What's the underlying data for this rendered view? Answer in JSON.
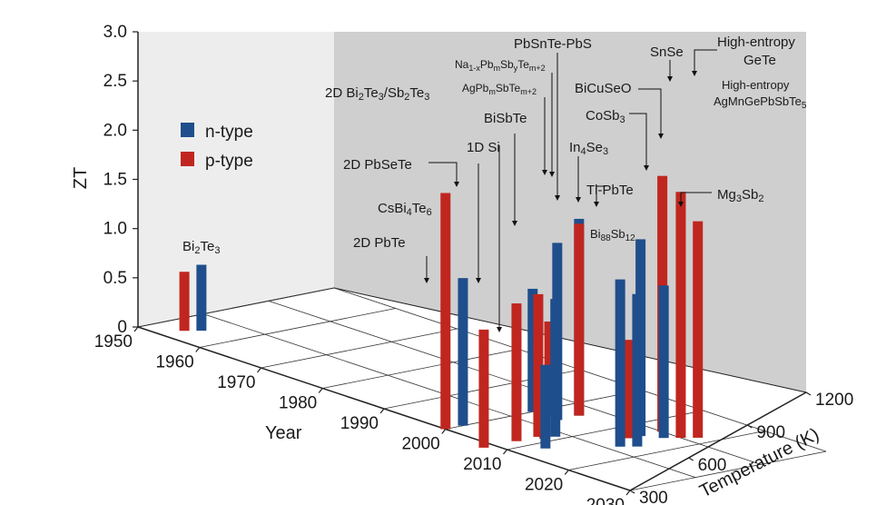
{
  "chart_data": {
    "type": "bar",
    "subtype": "3d-bar",
    "z_label": "ZT",
    "year_label": "Year",
    "temperature_label": "Temperature (K)",
    "z_ticks": [
      "0",
      "0.5",
      "1.0",
      "1.5",
      "2.0",
      "2.5",
      "3.0"
    ],
    "year_ticks": [
      "1950",
      "1960",
      "1970",
      "1980",
      "1990",
      "2000",
      "2010",
      "2020",
      "2030"
    ],
    "temperature_ticks": [
      "300",
      "600",
      "900",
      "1200"
    ],
    "zlim": [
      0,
      3
    ],
    "legend_position": "left",
    "series": [
      {
        "name": "n-type",
        "color": "#1f4e8c"
      },
      {
        "name": "p-type",
        "color": "#c0261f"
      }
    ],
    "bars": [
      {
        "type": "p-type",
        "year": 1954,
        "temperature": 400,
        "zt": 0.6,
        "label": "Bi2Te3"
      },
      {
        "type": "n-type",
        "year": 1955,
        "temperature": 450,
        "zt": 0.67
      },
      {
        "type": "n-type",
        "year": 2000,
        "temperature": 700,
        "zt": 1.25
      },
      {
        "type": "p-type",
        "year": 2002,
        "temperature": 720,
        "zt": 0.95,
        "label": "2D PbTe"
      },
      {
        "type": "p-type",
        "year": 2000,
        "temperature": 300,
        "zt": 2.4,
        "label": "2D Bi2Te3/Sb2Te3"
      },
      {
        "type": "n-type",
        "year": 2000,
        "temperature": 380,
        "zt": 1.5,
        "label": "CsBi4Te6"
      },
      {
        "type": "p-type",
        "year": 2008,
        "temperature": 250,
        "zt": 1.2,
        "label": "1D Si"
      },
      {
        "type": "p-type",
        "year": 2009,
        "temperature": 500,
        "zt": 0.7,
        "label": "2D PbSeTe"
      },
      {
        "type": "p-type",
        "year": 2008,
        "temperature": 400,
        "zt": 1.4,
        "label": "BiSbTe"
      },
      {
        "type": "n-type",
        "year": 2004,
        "temperature": 800,
        "zt": 2.0,
        "label": "PbSnTe-PbS"
      },
      {
        "type": "p-type",
        "year": 2004,
        "temperature": 800,
        "zt": 1.95,
        "label": "Na1-xPbmSbyTem+2"
      },
      {
        "type": "n-type",
        "year": 2004,
        "temperature": 700,
        "zt": 1.8,
        "label": "AgPbmSbTem+2"
      },
      {
        "type": "n-type",
        "year": 2009,
        "temperature": 550,
        "zt": 1.4,
        "label": "In4Se3"
      },
      {
        "type": "p-type",
        "year": 2008,
        "temperature": 500,
        "zt": 1.45,
        "label": "Tl-PbTe"
      },
      {
        "type": "n-type",
        "year": 2016,
        "temperature": 850,
        "zt": 1.55,
        "label": "Bi88Sb12"
      },
      {
        "type": "n-type",
        "year": 2012,
        "temperature": 420,
        "zt": 0.85
      },
      {
        "type": "n-type",
        "year": 2016,
        "temperature": 650,
        "zt": 1.7,
        "label": "CoSb3"
      },
      {
        "type": "n-type",
        "year": 2014,
        "temperature": 800,
        "zt": 2.0,
        "label": "BiCuSeO"
      },
      {
        "type": "p-type",
        "year": 2014,
        "temperature": 750,
        "zt": 1.0
      },
      {
        "type": "p-type",
        "year": 2014,
        "temperature": 900,
        "zt": 2.6,
        "label": "SnSe"
      },
      {
        "type": "n-type",
        "year": 2017,
        "temperature": 700,
        "zt": 1.55,
        "label": "Mg3Sb2"
      },
      {
        "type": "p-type",
        "year": 2017,
        "temperature": 900,
        "zt": 2.5,
        "label": "High-entropy GeTe"
      },
      {
        "type": "p-type",
        "year": 2018,
        "temperature": 950,
        "zt": 2.2,
        "label": "High-entropy AgMnGePbSbTe5"
      }
    ]
  }
}
